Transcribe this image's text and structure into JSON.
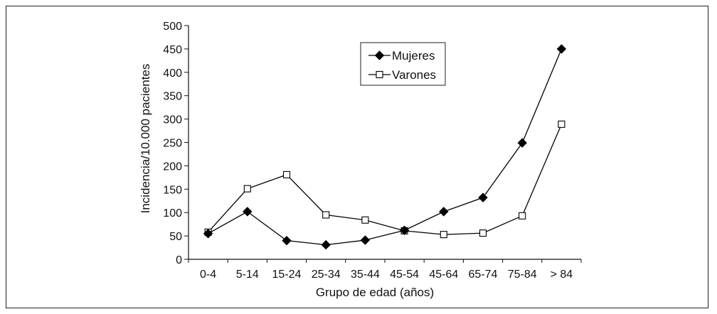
{
  "chart_data": {
    "type": "line",
    "title": "",
    "xlabel": "Grupo de edad (años)",
    "ylabel": "Incidencia/10.000 pacientes",
    "categories": [
      "0-4",
      "5-14",
      "15-24",
      "25-34",
      "35-44",
      "45-54",
      "45-64",
      "65-74",
      "75-84",
      "> 84"
    ],
    "ylim": [
      0,
      500
    ],
    "yticks": [
      0,
      50,
      100,
      150,
      200,
      250,
      300,
      350,
      400,
      450,
      500
    ],
    "grid": false,
    "legend_position": "top-center",
    "series": [
      {
        "name": "Mujeres",
        "marker": "filled-diamond",
        "color": "#000000",
        "values": [
          55,
          102,
          40,
          31,
          41,
          62,
          102,
          132,
          249,
          450
        ]
      },
      {
        "name": "Varones",
        "marker": "open-square",
        "color": "#000000",
        "values": [
          58,
          151,
          181,
          95,
          84,
          61,
          53,
          56,
          93,
          289
        ]
      }
    ]
  }
}
